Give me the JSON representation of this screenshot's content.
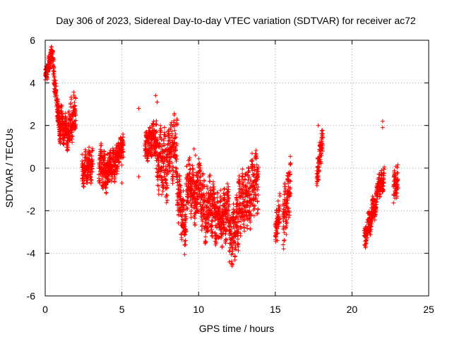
{
  "chart_data": {
    "type": "scatter",
    "title": "Day 306 of 2023, Sidereal Day-to-day VTEC variation (SDTVAR) for receiver ac72",
    "xlabel": "GPS time / hours",
    "ylabel": "SDTVAR / TECUs",
    "xlim": [
      0,
      25
    ],
    "ylim": [
      -6,
      6
    ],
    "xticks": [
      0,
      5,
      10,
      15,
      20,
      25
    ],
    "yticks": [
      -6,
      -4,
      -2,
      0,
      2,
      4,
      6
    ],
    "xtick_labels": [
      "0",
      "5",
      "10",
      "15",
      "20",
      "25"
    ],
    "ytick_labels": [
      "-6",
      "-4",
      "-2",
      "0",
      "2",
      "4",
      "6"
    ],
    "grid": true,
    "marker": "+",
    "color": "#ff0000",
    "series": [
      {
        "name": "SDTVAR",
        "segments": [
          {
            "x": [
              0.0,
              0.5
            ],
            "y": [
              4.3,
              5.5
            ],
            "spread": 0.6
          },
          {
            "x": [
              0.5,
              1.0
            ],
            "y": [
              4.8,
              1.5
            ],
            "spread": 0.8
          },
          {
            "x": [
              0.8,
              1.5
            ],
            "y": [
              2.5,
              1.5
            ],
            "spread": 1.2
          },
          {
            "x": [
              1.5,
              2.0
            ],
            "y": [
              2.0,
              2.6
            ],
            "spread": 1.6
          },
          {
            "x": [
              2.4,
              3.1
            ],
            "y": [
              -0.1,
              0.2
            ],
            "spread": 1.2
          },
          {
            "x": [
              3.5,
              4.1
            ],
            "y": [
              0.3,
              -0.3
            ],
            "spread": 1.4
          },
          {
            "x": [
              4.1,
              4.7
            ],
            "y": [
              0.1,
              0.2
            ],
            "spread": 1.2
          },
          {
            "x": [
              4.7,
              5.1
            ],
            "y": [
              0.5,
              1.0
            ],
            "spread": 1.0
          },
          {
            "x": [
              6.5,
              7.2
            ],
            "y": [
              1.0,
              1.5
            ],
            "spread": 1.2
          },
          {
            "x": [
              7.2,
              8.0
            ],
            "y": [
              0.5,
              0.0
            ],
            "spread": 2.5
          },
          {
            "x": [
              8.0,
              8.6
            ],
            "y": [
              0.8,
              1.0
            ],
            "spread": 2.2
          },
          {
            "x": [
              8.6,
              9.2
            ],
            "y": [
              -1.0,
              -3.0
            ],
            "spread": 2.0
          },
          {
            "x": [
              9.2,
              9.9
            ],
            "y": [
              -0.5,
              -1.5
            ],
            "spread": 2.0
          },
          {
            "x": [
              9.9,
              10.6
            ],
            "y": [
              -0.5,
              -2.5
            ],
            "spread": 2.2
          },
          {
            "x": [
              10.6,
              11.3
            ],
            "y": [
              -1.5,
              -2.5
            ],
            "spread": 2.0
          },
          {
            "x": [
              11.3,
              12.0
            ],
            "y": [
              -2.5,
              -2.0
            ],
            "spread": 2.0
          },
          {
            "x": [
              12.0,
              12.6
            ],
            "y": [
              -3.5,
              -2.5
            ],
            "spread": 2.0
          },
          {
            "x": [
              12.6,
              13.2
            ],
            "y": [
              -1.8,
              -1.5
            ],
            "spread": 2.2
          },
          {
            "x": [
              13.2,
              13.9
            ],
            "y": [
              -1.5,
              -0.5
            ],
            "spread": 2.4
          },
          {
            "x": [
              15.0,
              15.3
            ],
            "y": [
              -3.0,
              -2.0
            ],
            "spread": 1.2
          },
          {
            "x": [
              15.5,
              16.0
            ],
            "y": [
              -2.5,
              -0.8
            ],
            "spread": 2.0
          },
          {
            "x": [
              17.7,
              18.1
            ],
            "y": [
              -0.5,
              1.5
            ],
            "spread": 1.0
          },
          {
            "x": [
              20.8,
              21.6
            ],
            "y": [
              -3.3,
              -1.5
            ],
            "spread": 1.0
          },
          {
            "x": [
              21.6,
              22.1
            ],
            "y": [
              -1.0,
              -0.5
            ],
            "spread": 0.8
          },
          {
            "x": [
              22.7,
              23.0
            ],
            "y": [
              -0.8,
              -0.6
            ],
            "spread": 1.2
          }
        ],
        "outliers": [
          {
            "x": 6.1,
            "y": 2.8
          },
          {
            "x": 6.1,
            "y": -0.4
          },
          {
            "x": 7.2,
            "y": 3.4
          },
          {
            "x": 7.3,
            "y": 3.1
          },
          {
            "x": 5.0,
            "y": -0.7
          },
          {
            "x": 9.7,
            "y": 0.9
          },
          {
            "x": 9.8,
            "y": 0.6
          },
          {
            "x": 22.0,
            "y": 2.2
          },
          {
            "x": 22.0,
            "y": 1.9
          },
          {
            "x": 21.8,
            "y": -0.3
          },
          {
            "x": 17.8,
            "y": 2.0
          },
          {
            "x": 15.0,
            "y": -3.2
          }
        ]
      }
    ]
  }
}
